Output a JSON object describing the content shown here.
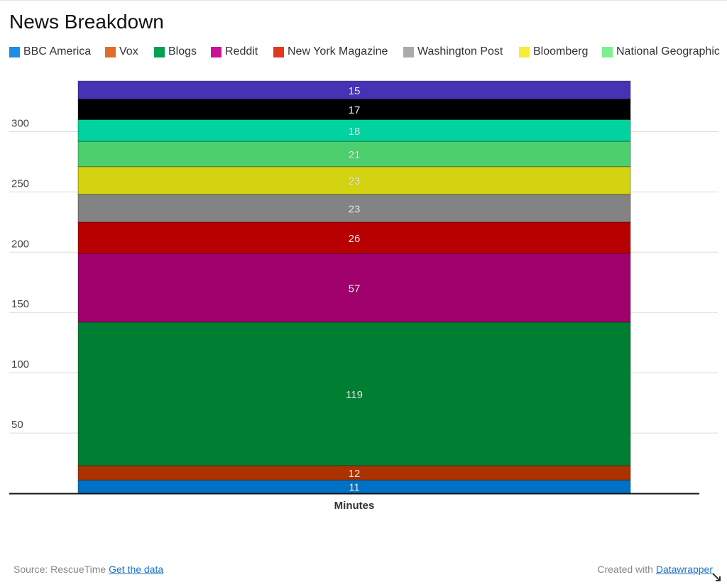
{
  "chart_data": {
    "type": "bar",
    "stacked": true,
    "title": "News Breakdown",
    "categories": [
      "Minutes"
    ],
    "series": [
      {
        "name": "BBC America",
        "values": [
          11
        ],
        "color": "#0072c6",
        "legend_color": "#1c8ee6"
      },
      {
        "name": "Vox",
        "values": [
          12
        ],
        "color": "#aa3300",
        "legend_color": "#e06c2c"
      },
      {
        "name": "Blogs",
        "values": [
          119
        ],
        "color": "#007f33",
        "legend_color": "#00a152"
      },
      {
        "name": "Reddit",
        "values": [
          57
        ],
        "color": "#a0006b",
        "legend_color": "#cc1196"
      },
      {
        "name": "New York Magazine",
        "values": [
          26
        ],
        "color": "#b80000",
        "legend_color": "#e03a1e"
      },
      {
        "name": "Washington Post",
        "values": [
          23
        ],
        "color": "#838383",
        "legend_color": "#ababab"
      },
      {
        "name": "Bloomberg",
        "values": [
          23
        ],
        "color": "#d3d30f",
        "legend_color": "#f7ec36"
      },
      {
        "name": "National Geographic",
        "values": [
          21
        ],
        "color": "#4ccf6c",
        "legend_color": "#7cf08f"
      },
      {
        "series_index": 8,
        "values": [
          18
        ],
        "color": "#00d39f"
      },
      {
        "series_index": 9,
        "values": [
          17
        ],
        "color": "#000000"
      },
      {
        "series_index": 10,
        "values": [
          15
        ],
        "color": "#4433b5"
      }
    ],
    "yticks": [
      50,
      100,
      150,
      200,
      250,
      300
    ],
    "ylim": [
      0,
      342
    ],
    "xlabel": "Minutes",
    "ylabel": "",
    "grid": true,
    "legend": "top"
  },
  "footer": {
    "source_prefix": "Source: RescueTime",
    "source_link": "Get the data",
    "credit_prefix": "Created with",
    "credit_link": "Datawrapper"
  }
}
